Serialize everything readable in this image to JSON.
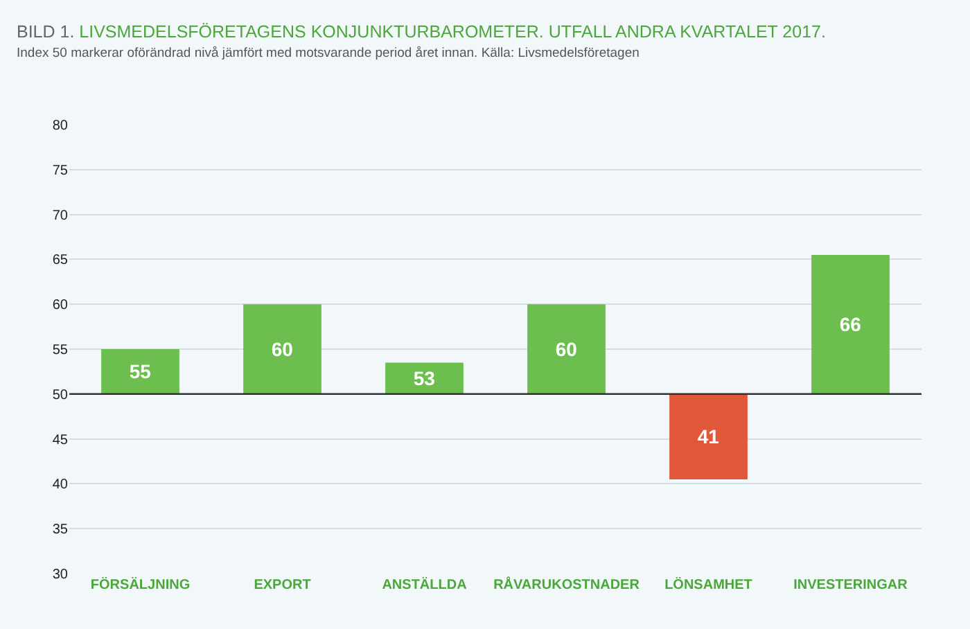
{
  "chart_data": {
    "type": "bar",
    "title": "BILD 1. LIVSMEDELSFÖRETAGENS KONJUNKTURBAROMETER. UTFALL ANDRA KVARTALET 2017.",
    "subtitle": "Index 50 markerar oförändrad nivå jämfört med motsvarande period året innan. Källa: Livsmedelsföretagen",
    "categories": [
      "FÖRSÄLJNING",
      "EXPORT",
      "ANSTÄLLDA",
      "RÅVARUKOSTNADER",
      "LÖNSAMHET",
      "INVESTERINGAR"
    ],
    "base": [
      50,
      50,
      50,
      50,
      50,
      50
    ],
    "values": [
      5,
      10,
      3.5,
      10,
      -9.5,
      15.5
    ],
    "value_labels": [
      "55",
      "60",
      "53",
      "60",
      "41",
      "66"
    ],
    "colors": [
      "#6cbf4f",
      "#6cbf4f",
      "#6cbf4f",
      "#6cbf4f",
      "#e1573a",
      "#6cbf4f"
    ],
    "ylim": [
      30,
      80
    ],
    "yticks": [
      30,
      35,
      40,
      45,
      50,
      55,
      60,
      65,
      70,
      75,
      80
    ],
    "grid": "y",
    "ref_lines": [
      {
        "axis": "y",
        "value": 50,
        "label": null,
        "color": "#333333"
      }
    ]
  }
}
